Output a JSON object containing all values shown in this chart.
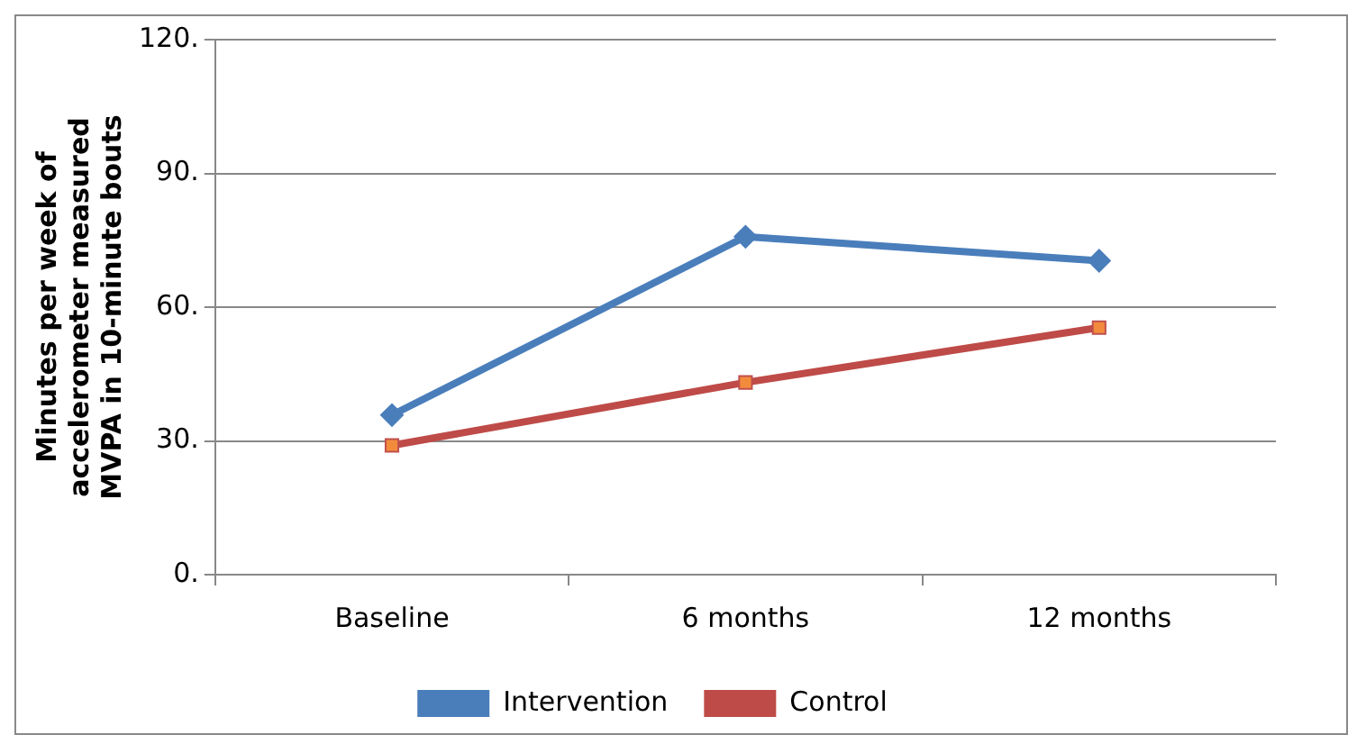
{
  "chart_data": {
    "type": "line",
    "ylabel": "Minutes per week of accelerometer measured MVPA in 10-minute bouts",
    "categories": [
      "Baseline",
      "6 months",
      "12 months"
    ],
    "series": [
      {
        "name": "Intervention",
        "color": "#4a7ebb",
        "values": [
          35.8,
          75.8,
          70.4
        ],
        "marker": "diamond"
      },
      {
        "name": "Control",
        "color": "#be4b48",
        "values": [
          29,
          43.1,
          55.4
        ],
        "marker": "square"
      }
    ],
    "ylim": [
      0,
      120
    ],
    "yticks": [
      {
        "value": 0,
        "label": "0."
      },
      {
        "value": 30,
        "label": "30."
      },
      {
        "value": 60,
        "label": "60."
      },
      {
        "value": 90,
        "label": "90."
      },
      {
        "value": 120,
        "label": "120."
      }
    ],
    "grid": "y",
    "legend": "bottom",
    "line_style": "solid"
  }
}
